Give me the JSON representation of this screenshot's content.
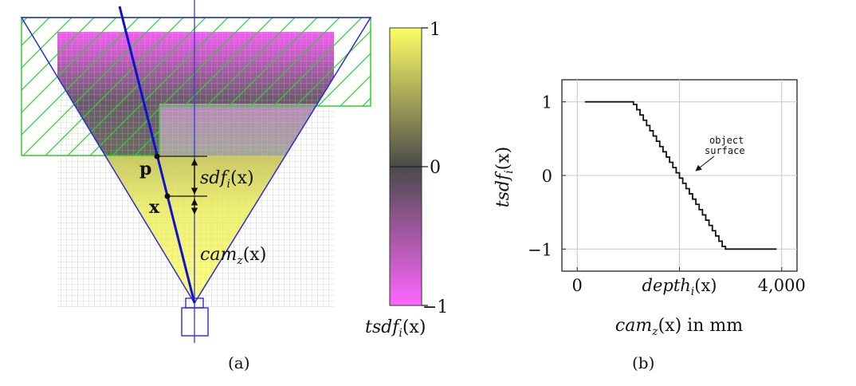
{
  "figure_a": {
    "caption": "(a)",
    "point_p": "p",
    "point_x": "x",
    "sdf_label": "sdf",
    "sdf_sub": "i",
    "sdf_arg": "(x)",
    "cam_label": "cam",
    "cam_sub": "z",
    "cam_arg": "(x)"
  },
  "colorbar": {
    "top_label": "1",
    "mid_label": "0",
    "bottom_label": "−1",
    "title": "tsdf",
    "title_sub": "i",
    "title_arg": "(x)",
    "colors": {
      "high": "#ffff66",
      "mid": "#4a4a4a",
      "low": "#ff66ff"
    }
  },
  "chart_data": {
    "type": "line",
    "caption": "(b)",
    "xlabel": "cam",
    "xlabel_sub": "z",
    "xlabel_arg": "(x)",
    "xlabel_suffix": " in mm",
    "ylabel": "tsdf",
    "ylabel_sub": "i",
    "ylabel_arg": "(x)",
    "xlim": [
      -300,
      4300
    ],
    "ylim": [
      -1.3,
      1.3
    ],
    "x_ticks": [
      {
        "value": 0,
        "label": "0"
      },
      {
        "value": 2000,
        "label": "depth"
      },
      {
        "value": 4000,
        "label": "4,000"
      }
    ],
    "x_tick_depth_sub": "i",
    "x_tick_depth_arg": "(x)",
    "y_ticks": [
      {
        "value": 1,
        "label": "1"
      },
      {
        "value": 0,
        "label": "0"
      },
      {
        "value": -1,
        "label": "−1"
      }
    ],
    "annotation": {
      "line1": "object",
      "line2": "surface",
      "x": 2000,
      "y": 0
    },
    "series": [
      {
        "name": "tsdf",
        "x": [
          150,
          1100,
          2900,
          3900
        ],
        "y": [
          1,
          1,
          -1,
          -1
        ],
        "steps": 28
      }
    ]
  }
}
